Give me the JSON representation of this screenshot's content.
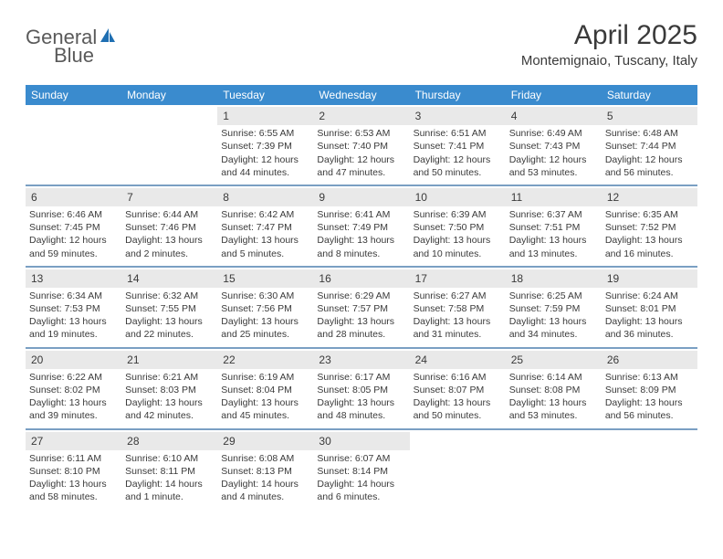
{
  "logo": {
    "word1": "General",
    "word2": "Blue"
  },
  "title": "April 2025",
  "location": "Montemignaio, Tuscany, Italy",
  "colors": {
    "header_bar": "#3a8bce",
    "week_sep": "#7a9fc3",
    "daynum_bg": "#e9e9e9",
    "text": "#3a3a3a",
    "logo_gray": "#5a5a5a",
    "logo_blue": "#1f6fb2",
    "background": "#ffffff"
  },
  "typography": {
    "title_fontsize": 30,
    "location_fontsize": 15,
    "dow_fontsize": 12,
    "daynum_fontsize": 12,
    "body_fontsize": 10.5
  },
  "dow": [
    "Sunday",
    "Monday",
    "Tuesday",
    "Wednesday",
    "Thursday",
    "Friday",
    "Saturday"
  ],
  "weeks": [
    [
      {
        "num": "",
        "sunrise": "",
        "sunset": "",
        "daylight1": "",
        "daylight2": ""
      },
      {
        "num": "",
        "sunrise": "",
        "sunset": "",
        "daylight1": "",
        "daylight2": ""
      },
      {
        "num": "1",
        "sunrise": "Sunrise: 6:55 AM",
        "sunset": "Sunset: 7:39 PM",
        "daylight1": "Daylight: 12 hours",
        "daylight2": "and 44 minutes."
      },
      {
        "num": "2",
        "sunrise": "Sunrise: 6:53 AM",
        "sunset": "Sunset: 7:40 PM",
        "daylight1": "Daylight: 12 hours",
        "daylight2": "and 47 minutes."
      },
      {
        "num": "3",
        "sunrise": "Sunrise: 6:51 AM",
        "sunset": "Sunset: 7:41 PM",
        "daylight1": "Daylight: 12 hours",
        "daylight2": "and 50 minutes."
      },
      {
        "num": "4",
        "sunrise": "Sunrise: 6:49 AM",
        "sunset": "Sunset: 7:43 PM",
        "daylight1": "Daylight: 12 hours",
        "daylight2": "and 53 minutes."
      },
      {
        "num": "5",
        "sunrise": "Sunrise: 6:48 AM",
        "sunset": "Sunset: 7:44 PM",
        "daylight1": "Daylight: 12 hours",
        "daylight2": "and 56 minutes."
      }
    ],
    [
      {
        "num": "6",
        "sunrise": "Sunrise: 6:46 AM",
        "sunset": "Sunset: 7:45 PM",
        "daylight1": "Daylight: 12 hours",
        "daylight2": "and 59 minutes."
      },
      {
        "num": "7",
        "sunrise": "Sunrise: 6:44 AM",
        "sunset": "Sunset: 7:46 PM",
        "daylight1": "Daylight: 13 hours",
        "daylight2": "and 2 minutes."
      },
      {
        "num": "8",
        "sunrise": "Sunrise: 6:42 AM",
        "sunset": "Sunset: 7:47 PM",
        "daylight1": "Daylight: 13 hours",
        "daylight2": "and 5 minutes."
      },
      {
        "num": "9",
        "sunrise": "Sunrise: 6:41 AM",
        "sunset": "Sunset: 7:49 PM",
        "daylight1": "Daylight: 13 hours",
        "daylight2": "and 8 minutes."
      },
      {
        "num": "10",
        "sunrise": "Sunrise: 6:39 AM",
        "sunset": "Sunset: 7:50 PM",
        "daylight1": "Daylight: 13 hours",
        "daylight2": "and 10 minutes."
      },
      {
        "num": "11",
        "sunrise": "Sunrise: 6:37 AM",
        "sunset": "Sunset: 7:51 PM",
        "daylight1": "Daylight: 13 hours",
        "daylight2": "and 13 minutes."
      },
      {
        "num": "12",
        "sunrise": "Sunrise: 6:35 AM",
        "sunset": "Sunset: 7:52 PM",
        "daylight1": "Daylight: 13 hours",
        "daylight2": "and 16 minutes."
      }
    ],
    [
      {
        "num": "13",
        "sunrise": "Sunrise: 6:34 AM",
        "sunset": "Sunset: 7:53 PM",
        "daylight1": "Daylight: 13 hours",
        "daylight2": "and 19 minutes."
      },
      {
        "num": "14",
        "sunrise": "Sunrise: 6:32 AM",
        "sunset": "Sunset: 7:55 PM",
        "daylight1": "Daylight: 13 hours",
        "daylight2": "and 22 minutes."
      },
      {
        "num": "15",
        "sunrise": "Sunrise: 6:30 AM",
        "sunset": "Sunset: 7:56 PM",
        "daylight1": "Daylight: 13 hours",
        "daylight2": "and 25 minutes."
      },
      {
        "num": "16",
        "sunrise": "Sunrise: 6:29 AM",
        "sunset": "Sunset: 7:57 PM",
        "daylight1": "Daylight: 13 hours",
        "daylight2": "and 28 minutes."
      },
      {
        "num": "17",
        "sunrise": "Sunrise: 6:27 AM",
        "sunset": "Sunset: 7:58 PM",
        "daylight1": "Daylight: 13 hours",
        "daylight2": "and 31 minutes."
      },
      {
        "num": "18",
        "sunrise": "Sunrise: 6:25 AM",
        "sunset": "Sunset: 7:59 PM",
        "daylight1": "Daylight: 13 hours",
        "daylight2": "and 34 minutes."
      },
      {
        "num": "19",
        "sunrise": "Sunrise: 6:24 AM",
        "sunset": "Sunset: 8:01 PM",
        "daylight1": "Daylight: 13 hours",
        "daylight2": "and 36 minutes."
      }
    ],
    [
      {
        "num": "20",
        "sunrise": "Sunrise: 6:22 AM",
        "sunset": "Sunset: 8:02 PM",
        "daylight1": "Daylight: 13 hours",
        "daylight2": "and 39 minutes."
      },
      {
        "num": "21",
        "sunrise": "Sunrise: 6:21 AM",
        "sunset": "Sunset: 8:03 PM",
        "daylight1": "Daylight: 13 hours",
        "daylight2": "and 42 minutes."
      },
      {
        "num": "22",
        "sunrise": "Sunrise: 6:19 AM",
        "sunset": "Sunset: 8:04 PM",
        "daylight1": "Daylight: 13 hours",
        "daylight2": "and 45 minutes."
      },
      {
        "num": "23",
        "sunrise": "Sunrise: 6:17 AM",
        "sunset": "Sunset: 8:05 PM",
        "daylight1": "Daylight: 13 hours",
        "daylight2": "and 48 minutes."
      },
      {
        "num": "24",
        "sunrise": "Sunrise: 6:16 AM",
        "sunset": "Sunset: 8:07 PM",
        "daylight1": "Daylight: 13 hours",
        "daylight2": "and 50 minutes."
      },
      {
        "num": "25",
        "sunrise": "Sunrise: 6:14 AM",
        "sunset": "Sunset: 8:08 PM",
        "daylight1": "Daylight: 13 hours",
        "daylight2": "and 53 minutes."
      },
      {
        "num": "26",
        "sunrise": "Sunrise: 6:13 AM",
        "sunset": "Sunset: 8:09 PM",
        "daylight1": "Daylight: 13 hours",
        "daylight2": "and 56 minutes."
      }
    ],
    [
      {
        "num": "27",
        "sunrise": "Sunrise: 6:11 AM",
        "sunset": "Sunset: 8:10 PM",
        "daylight1": "Daylight: 13 hours",
        "daylight2": "and 58 minutes."
      },
      {
        "num": "28",
        "sunrise": "Sunrise: 6:10 AM",
        "sunset": "Sunset: 8:11 PM",
        "daylight1": "Daylight: 14 hours",
        "daylight2": "and 1 minute."
      },
      {
        "num": "29",
        "sunrise": "Sunrise: 6:08 AM",
        "sunset": "Sunset: 8:13 PM",
        "daylight1": "Daylight: 14 hours",
        "daylight2": "and 4 minutes."
      },
      {
        "num": "30",
        "sunrise": "Sunrise: 6:07 AM",
        "sunset": "Sunset: 8:14 PM",
        "daylight1": "Daylight: 14 hours",
        "daylight2": "and 6 minutes."
      },
      {
        "num": "",
        "sunrise": "",
        "sunset": "",
        "daylight1": "",
        "daylight2": ""
      },
      {
        "num": "",
        "sunrise": "",
        "sunset": "",
        "daylight1": "",
        "daylight2": ""
      },
      {
        "num": "",
        "sunrise": "",
        "sunset": "",
        "daylight1": "",
        "daylight2": ""
      }
    ]
  ]
}
